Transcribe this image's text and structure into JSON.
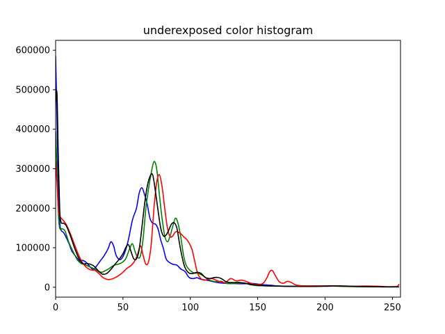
{
  "chart_data": {
    "type": "line",
    "title": "underexposed color histogram",
    "xlabel": "",
    "ylabel": "",
    "xlim": [
      0,
      256
    ],
    "ylim": [
      -25000,
      625000
    ],
    "xticks": [
      0,
      50,
      100,
      150,
      200,
      250
    ],
    "yticks": [
      0,
      100000,
      200000,
      300000,
      400000,
      500000,
      600000
    ],
    "grid": false,
    "series": [
      {
        "color": "#0000ff",
        "points": [
          [
            0,
            585000
          ],
          [
            1,
            430000
          ],
          [
            2,
            260000
          ],
          [
            3,
            170000
          ],
          [
            4,
            145000
          ],
          [
            6,
            138000
          ],
          [
            8,
            125000
          ],
          [
            10,
            110000
          ],
          [
            12,
            92000
          ],
          [
            15,
            78000
          ],
          [
            18,
            66000
          ],
          [
            20,
            68000
          ],
          [
            23,
            62000
          ],
          [
            26,
            50000
          ],
          [
            28,
            45000
          ],
          [
            30,
            52000
          ],
          [
            33,
            66000
          ],
          [
            36,
            80000
          ],
          [
            39,
            98000
          ],
          [
            41,
            115000
          ],
          [
            43,
            105000
          ],
          [
            45,
            80000
          ],
          [
            48,
            70000
          ],
          [
            51,
            85000
          ],
          [
            54,
            120000
          ],
          [
            57,
            170000
          ],
          [
            60,
            200000
          ],
          [
            62,
            238000
          ],
          [
            64,
            252000
          ],
          [
            66,
            235000
          ],
          [
            68,
            210000
          ],
          [
            70,
            175000
          ],
          [
            72,
            162000
          ],
          [
            74,
            160000
          ],
          [
            76,
            148000
          ],
          [
            78,
            120000
          ],
          [
            80,
            98000
          ],
          [
            82,
            72000
          ],
          [
            84,
            64000
          ],
          [
            87,
            58000
          ],
          [
            90,
            56000
          ],
          [
            93,
            46000
          ],
          [
            96,
            40000
          ],
          [
            99,
            25000
          ],
          [
            102,
            22000
          ],
          [
            105,
            24000
          ],
          [
            108,
            20000
          ],
          [
            112,
            18000
          ],
          [
            116,
            15000
          ],
          [
            120,
            12000
          ],
          [
            125,
            10000
          ],
          [
            130,
            10000
          ],
          [
            135,
            9000
          ],
          [
            140,
            9000
          ],
          [
            145,
            10000
          ],
          [
            150,
            8000
          ],
          [
            155,
            6000
          ],
          [
            160,
            5000
          ],
          [
            165,
            3000
          ],
          [
            170,
            2500
          ],
          [
            180,
            2000
          ],
          [
            190,
            2000
          ],
          [
            200,
            2500
          ],
          [
            210,
            3000
          ],
          [
            220,
            2000
          ],
          [
            230,
            1500
          ],
          [
            240,
            1000
          ],
          [
            250,
            800
          ],
          [
            255,
            1000
          ]
        ]
      },
      {
        "color": "#008000",
        "points": [
          [
            0,
            395000
          ],
          [
            1,
            300000
          ],
          [
            2,
            190000
          ],
          [
            3,
            150000
          ],
          [
            5,
            148000
          ],
          [
            7,
            142000
          ],
          [
            10,
            112000
          ],
          [
            13,
            90000
          ],
          [
            16,
            70000
          ],
          [
            19,
            60000
          ],
          [
            22,
            57000
          ],
          [
            25,
            52000
          ],
          [
            28,
            48000
          ],
          [
            31,
            42000
          ],
          [
            34,
            38000
          ],
          [
            37,
            42000
          ],
          [
            40,
            48000
          ],
          [
            43,
            55000
          ],
          [
            46,
            58000
          ],
          [
            49,
            62000
          ],
          [
            52,
            72000
          ],
          [
            55,
            98000
          ],
          [
            57,
            110000
          ],
          [
            59,
            90000
          ],
          [
            61,
            75000
          ],
          [
            63,
            80000
          ],
          [
            65,
            125000
          ],
          [
            67,
            200000
          ],
          [
            69,
            250000
          ],
          [
            71,
            290000
          ],
          [
            73,
            318000
          ],
          [
            75,
            300000
          ],
          [
            77,
            235000
          ],
          [
            79,
            175000
          ],
          [
            81,
            130000
          ],
          [
            83,
            115000
          ],
          [
            85,
            130000
          ],
          [
            87,
            155000
          ],
          [
            89,
            175000
          ],
          [
            91,
            160000
          ],
          [
            93,
            125000
          ],
          [
            95,
            80000
          ],
          [
            97,
            55000
          ],
          [
            100,
            42000
          ],
          [
            103,
            36000
          ],
          [
            106,
            35000
          ],
          [
            110,
            28000
          ],
          [
            113,
            20000
          ],
          [
            116,
            16000
          ],
          [
            120,
            14000
          ],
          [
            123,
            15000
          ],
          [
            126,
            10000
          ],
          [
            130,
            9000
          ],
          [
            135,
            10000
          ],
          [
            140,
            11000
          ],
          [
            145,
            6000
          ],
          [
            150,
            4000
          ],
          [
            155,
            3500
          ],
          [
            160,
            3000
          ],
          [
            170,
            2500
          ],
          [
            180,
            2000
          ],
          [
            190,
            2000
          ],
          [
            200,
            3000
          ],
          [
            210,
            2500
          ],
          [
            220,
            1500
          ],
          [
            230,
            1200
          ],
          [
            240,
            1000
          ],
          [
            250,
            800
          ],
          [
            255,
            1000
          ]
        ]
      },
      {
        "color": "#ff0000",
        "points": [
          [
            0,
            320000
          ],
          [
            1,
            265000
          ],
          [
            2,
            200000
          ],
          [
            3,
            180000
          ],
          [
            5,
            172000
          ],
          [
            8,
            158000
          ],
          [
            11,
            135000
          ],
          [
            14,
            108000
          ],
          [
            17,
            82000
          ],
          [
            20,
            62000
          ],
          [
            23,
            50000
          ],
          [
            26,
            44000
          ],
          [
            29,
            43000
          ],
          [
            32,
            35000
          ],
          [
            35,
            25000
          ],
          [
            38,
            20000
          ],
          [
            41,
            20000
          ],
          [
            44,
            24000
          ],
          [
            47,
            30000
          ],
          [
            50,
            38000
          ],
          [
            53,
            48000
          ],
          [
            56,
            55000
          ],
          [
            59,
            68000
          ],
          [
            61,
            85000
          ],
          [
            63,
            105000
          ],
          [
            65,
            80000
          ],
          [
            67,
            58000
          ],
          [
            69,
            65000
          ],
          [
            71,
            110000
          ],
          [
            73,
            200000
          ],
          [
            75,
            265000
          ],
          [
            77,
            285000
          ],
          [
            79,
            255000
          ],
          [
            81,
            200000
          ],
          [
            83,
            150000
          ],
          [
            85,
            128000
          ],
          [
            87,
            130000
          ],
          [
            89,
            140000
          ],
          [
            92,
            138000
          ],
          [
            95,
            128000
          ],
          [
            98,
            118000
          ],
          [
            101,
            98000
          ],
          [
            103,
            70000
          ],
          [
            105,
            40000
          ],
          [
            107,
            25000
          ],
          [
            110,
            18000
          ],
          [
            113,
            20000
          ],
          [
            116,
            22000
          ],
          [
            119,
            18000
          ],
          [
            122,
            14000
          ],
          [
            126,
            12000
          ],
          [
            130,
            22000
          ],
          [
            134,
            16000
          ],
          [
            138,
            18000
          ],
          [
            142,
            14000
          ],
          [
            146,
            9000
          ],
          [
            150,
            7000
          ],
          [
            154,
            10000
          ],
          [
            157,
            25000
          ],
          [
            159,
            40000
          ],
          [
            161,
            42000
          ],
          [
            163,
            30000
          ],
          [
            166,
            14000
          ],
          [
            169,
            10000
          ],
          [
            172,
            15000
          ],
          [
            175,
            12000
          ],
          [
            178,
            6000
          ],
          [
            182,
            4000
          ],
          [
            190,
            3500
          ],
          [
            200,
            3500
          ],
          [
            210,
            3000
          ],
          [
            220,
            2500
          ],
          [
            230,
            3000
          ],
          [
            240,
            2500
          ],
          [
            245,
            1500
          ],
          [
            250,
            1500
          ],
          [
            253,
            2000
          ],
          [
            254,
            3000
          ],
          [
            255,
            8000
          ]
        ]
      },
      {
        "color": "#000000",
        "points": [
          [
            0,
            470000
          ],
          [
            1,
            490000
          ],
          [
            2,
            330000
          ],
          [
            3,
            200000
          ],
          [
            4,
            165000
          ],
          [
            6,
            162000
          ],
          [
            8,
            155000
          ],
          [
            11,
            130000
          ],
          [
            14,
            100000
          ],
          [
            17,
            75000
          ],
          [
            20,
            60000
          ],
          [
            23,
            60000
          ],
          [
            26,
            58000
          ],
          [
            29,
            52000
          ],
          [
            32,
            40000
          ],
          [
            35,
            33000
          ],
          [
            38,
            35000
          ],
          [
            41,
            45000
          ],
          [
            44,
            58000
          ],
          [
            47,
            70000
          ],
          [
            50,
            85000
          ],
          [
            52,
            100000
          ],
          [
            54,
            108000
          ],
          [
            56,
            90000
          ],
          [
            58,
            72000
          ],
          [
            60,
            72000
          ],
          [
            62,
            95000
          ],
          [
            64,
            150000
          ],
          [
            66,
            210000
          ],
          [
            68,
            255000
          ],
          [
            70,
            280000
          ],
          [
            72,
            285000
          ],
          [
            74,
            245000
          ],
          [
            76,
            195000
          ],
          [
            78,
            150000
          ],
          [
            80,
            130000
          ],
          [
            82,
            132000
          ],
          [
            84,
            145000
          ],
          [
            86,
            160000
          ],
          [
            88,
            163000
          ],
          [
            90,
            150000
          ],
          [
            92,
            110000
          ],
          [
            94,
            75000
          ],
          [
            96,
            50000
          ],
          [
            99,
            36000
          ],
          [
            102,
            35000
          ],
          [
            105,
            38000
          ],
          [
            108,
            35000
          ],
          [
            111,
            25000
          ],
          [
            114,
            22000
          ],
          [
            117,
            24000
          ],
          [
            120,
            25000
          ],
          [
            123,
            22000
          ],
          [
            126,
            15000
          ],
          [
            129,
            12000
          ],
          [
            133,
            12000
          ],
          [
            137,
            12000
          ],
          [
            142,
            9000
          ],
          [
            148,
            6000
          ],
          [
            155,
            4000
          ],
          [
            165,
            3000
          ],
          [
            175,
            2500
          ],
          [
            185,
            2000
          ],
          [
            195,
            2500
          ],
          [
            205,
            3500
          ],
          [
            215,
            3000
          ],
          [
            225,
            2000
          ],
          [
            235,
            1500
          ],
          [
            245,
            1000
          ],
          [
            255,
            1000
          ]
        ]
      }
    ]
  }
}
